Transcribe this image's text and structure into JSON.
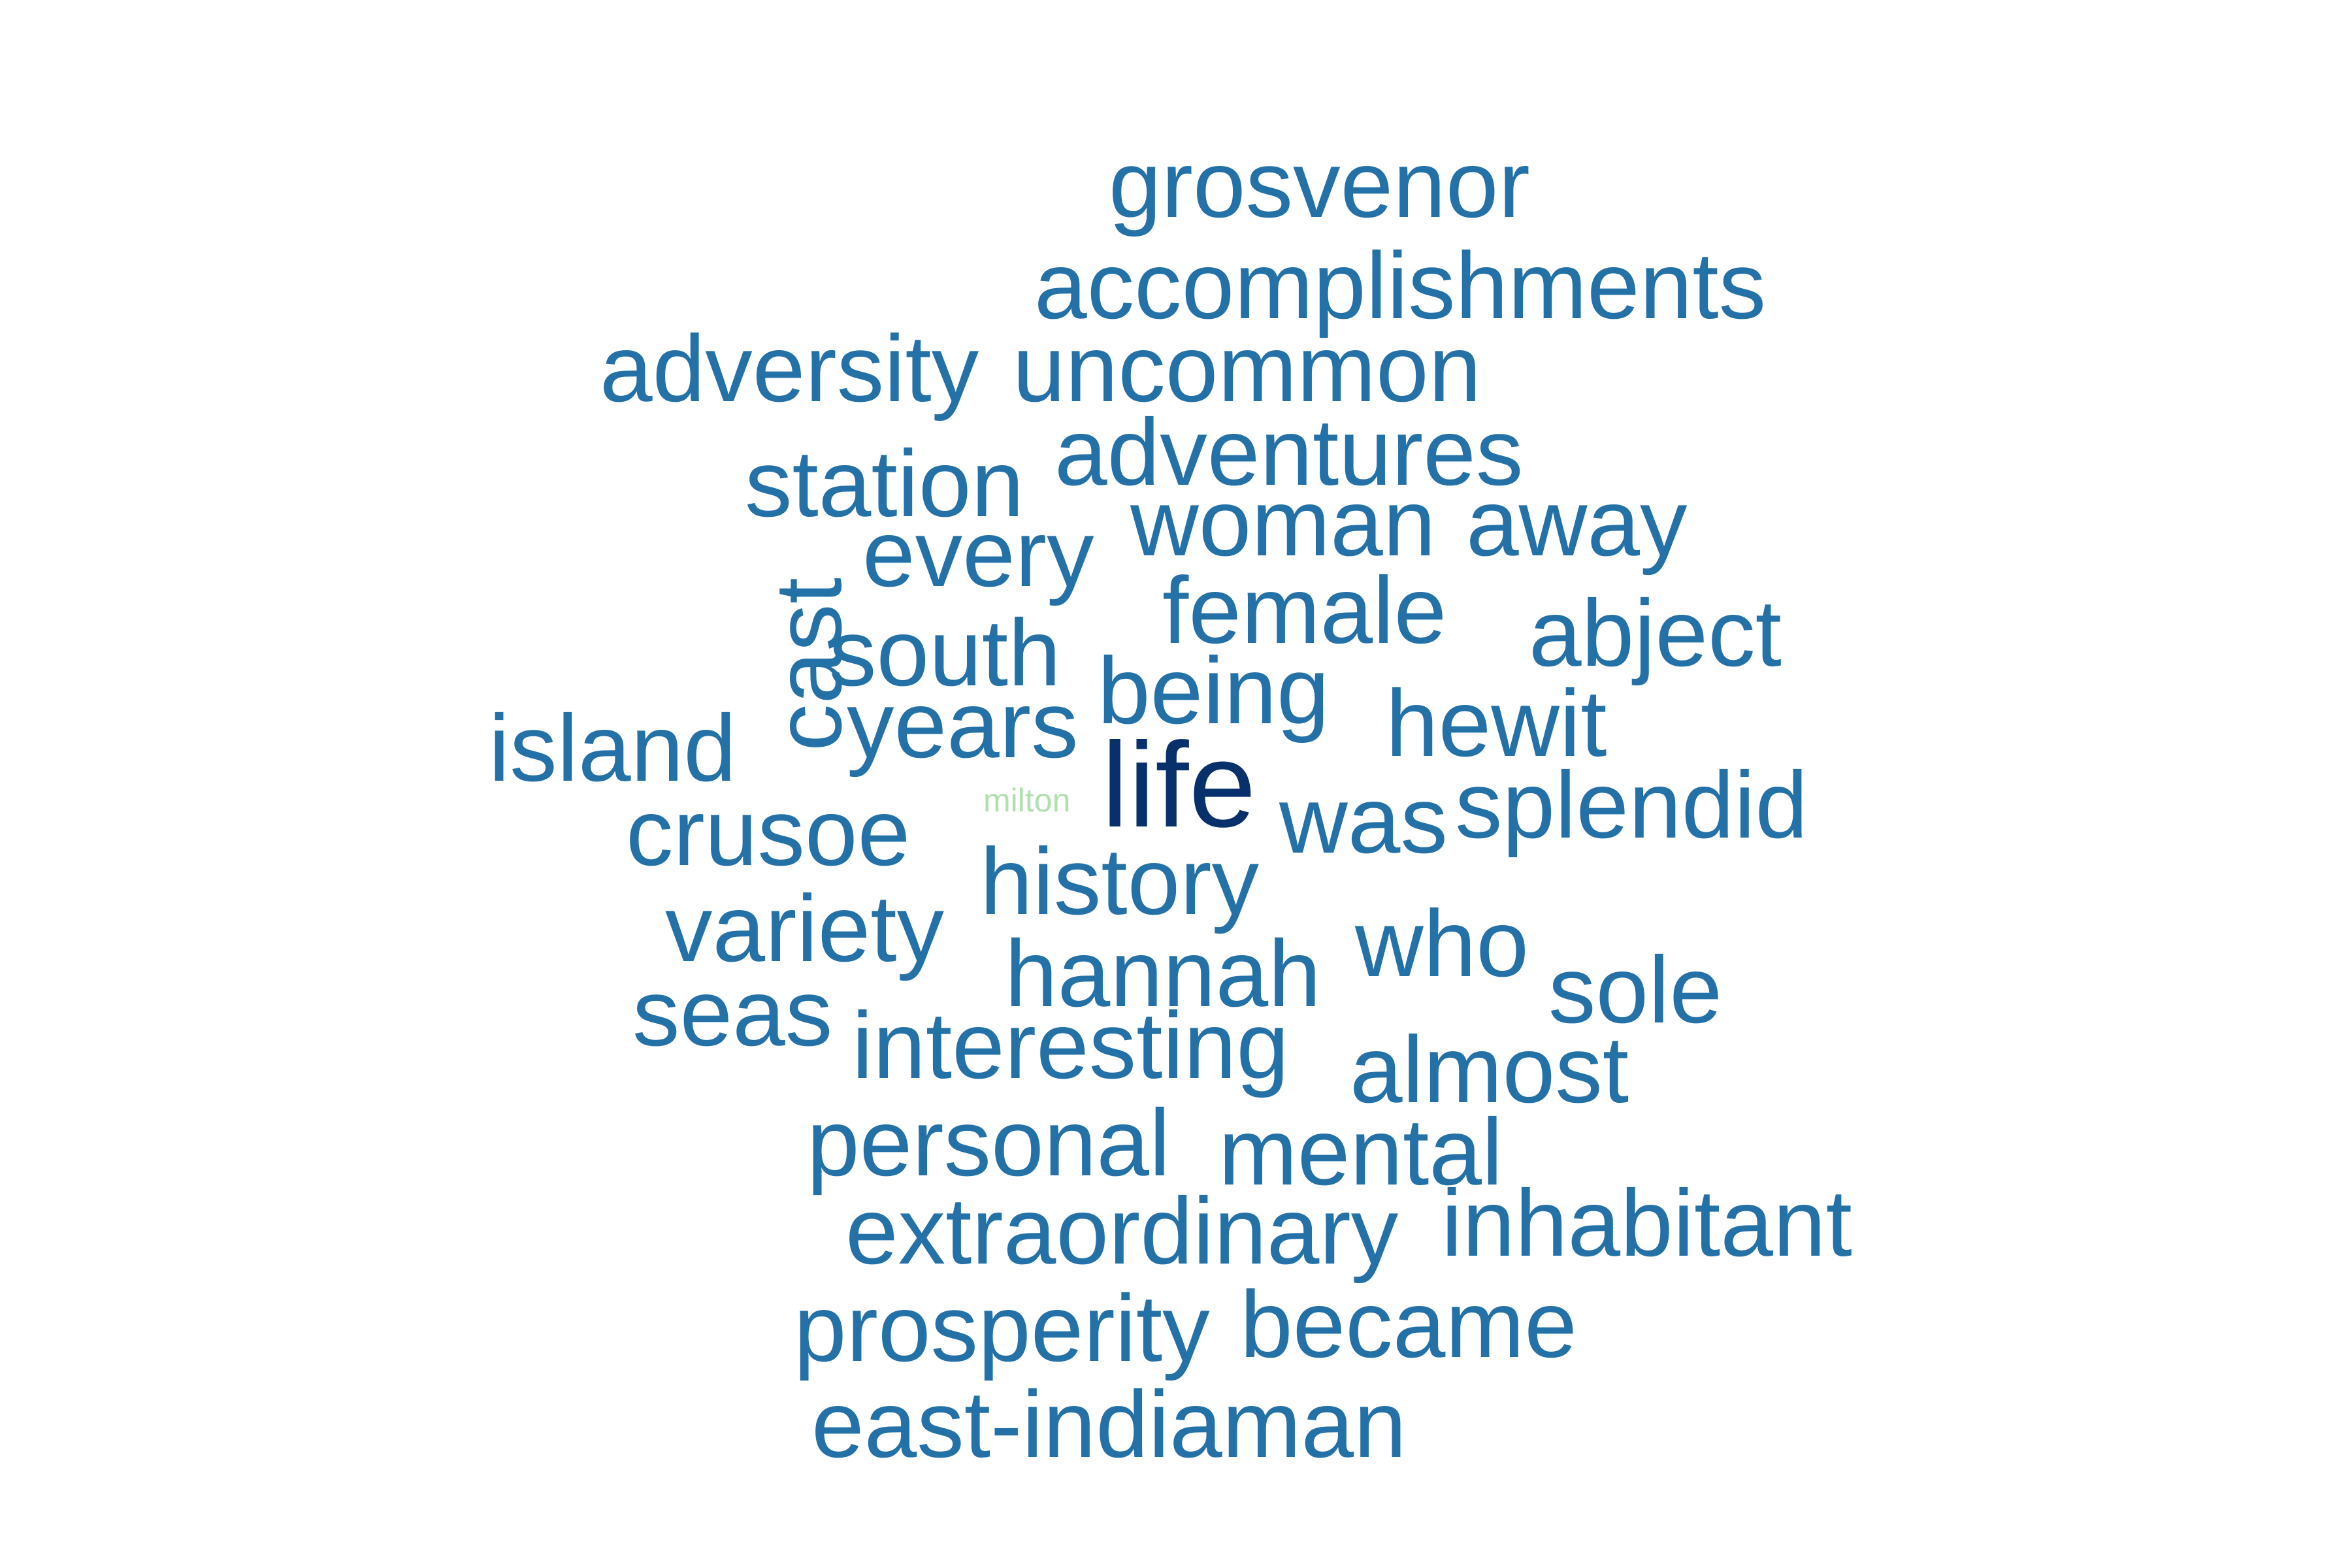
{
  "cloud": {
    "colors": {
      "primary": "#2471a8",
      "emphasis": "#08306b",
      "faint": "#b2dfb0",
      "background": "#ffffff"
    },
    "words": [
      "grosvenor",
      "accomplishments",
      "adversity",
      "uncommon",
      "adventures",
      "station",
      "woman",
      "away",
      "every",
      "female",
      "cast",
      "abject",
      "south",
      "being",
      "years",
      "hewit",
      "island",
      "life",
      "milton",
      "was",
      "splendid",
      "crusoe",
      "history",
      "variety",
      "who",
      "hannah",
      "sole",
      "seas",
      "interesting",
      "almost",
      "personal",
      "mental",
      "extraordinary",
      "inhabitant",
      "prosperity",
      "became",
      "east-indiaman"
    ]
  }
}
